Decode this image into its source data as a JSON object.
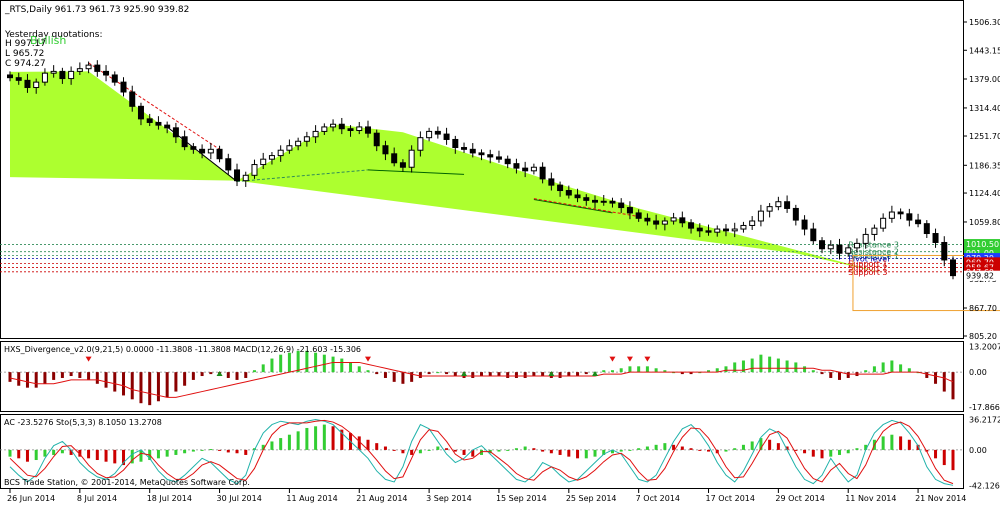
{
  "header": {
    "symbol_line": "_RTS,Daily  961.73 961.73 925.90 939.82",
    "yesterday_title": "Yesterday quotations:",
    "bullish_label": "Bullish",
    "h_line": "H 997.17",
    "l_line": "L 965.72",
    "c_line": "C 974.27"
  },
  "colors": {
    "up_candle": "#ffffff",
    "down_candle": "#000000",
    "wedge_fill": "#adff2f",
    "macd_up": "#32cd32",
    "macd_down": "#8b0000",
    "ac_up": "#32cd32",
    "ac_down": "#cc0000",
    "signal_line": "#e01010",
    "sto_main": "#20b2aa",
    "sto_signal": "#e01010",
    "grid": "#c0c0c0",
    "box": "#f0a030"
  },
  "main_panel": {
    "price_ticks": [
      "1506.30",
      "1443.15",
      "1379.00",
      "1314.40",
      "1251.70",
      "1186.35",
      "1124.40",
      "1059.80",
      "932.75",
      "867.70",
      "805.20"
    ],
    "price_axis_values": [
      1506.3,
      1443.15,
      1379.0,
      1314.4,
      1251.7,
      1186.35,
      1124.4,
      1059.8,
      932.75,
      867.7,
      805.2
    ],
    "ylim": [
      805.2,
      1542
    ],
    "level_labels": [
      {
        "text": "Resistance 3",
        "price": 1009.6,
        "color": "#2e8b57"
      },
      {
        "text": "Resistance 2",
        "price": 993.5,
        "color": "#2e8b57"
      },
      {
        "text": "Resistance 1",
        "price": 985.0,
        "color": "#2e8b57"
      },
      {
        "text": "Pivot level",
        "price": 978.0,
        "color": "#0000aa"
      },
      {
        "text": "Support 1",
        "price": 967.0,
        "color": "#cc0000"
      },
      {
        "text": "Support 2",
        "price": 958.0,
        "color": "#cc0000"
      },
      {
        "text": "Support 3",
        "price": 948.5,
        "color": "#cc0000"
      }
    ],
    "right_badges": [
      {
        "text": "1010.50",
        "price": 1010.5,
        "color": "#32cd32"
      },
      {
        "text": "991.00",
        "price": 991.0,
        "color": "#32cd32"
      },
      {
        "text": "979.20",
        "price": 979.2,
        "color": "#1e3cff"
      },
      {
        "text": "969.70",
        "price": 969.7,
        "color": "#cc0000"
      },
      {
        "text": "958.67",
        "price": 958.67,
        "color": "#cc0000"
      },
      {
        "text": "947.60",
        "price": 947.6,
        "color": "#cc0000"
      },
      {
        "text": "939.82",
        "price": 939.82,
        "color": "#ffffff"
      }
    ]
  },
  "macd_panel": {
    "label": "HXS_Divergence_v2.0(9,21,5) 0.0000 -11.3808 -11.3808   MACD(12,26,9) -21.603 -15.306",
    "ticks": [
      "13.2007",
      "0.00",
      "-17.8666"
    ],
    "tick_values": [
      13.2007,
      0.0,
      -17.8666
    ],
    "ylim": [
      -19.5,
      14.5
    ]
  },
  "ac_panel": {
    "label": "AC -23.5276  Sto(5,3,3) 8.1050 13.2708",
    "ticks": [
      "36.2172",
      "0.00",
      "-42.1263"
    ],
    "tick_values": [
      36.2172,
      0.0,
      -42.1263
    ],
    "ylim": [
      -44,
      39
    ],
    "copyright": "BCS Trade Station, © 2001-2014, MetaQuotes Software Corp."
  },
  "x_axis": {
    "labels": [
      "26 Jun 2014",
      "8 Jul 2014",
      "18 Jul 2014",
      "30 Jul 2014",
      "11 Aug 2014",
      "21 Aug 2014",
      "3 Sep 2014",
      "15 Sep 2014",
      "25 Sep 2014",
      "7 Oct 2014",
      "17 Oct 2014",
      "29 Oct 2014",
      "11 Nov 2014",
      "21 Nov 2014"
    ],
    "label_bar_index": [
      0,
      8,
      16,
      24,
      32,
      40,
      48,
      56,
      64,
      72,
      80,
      88,
      96,
      104
    ]
  },
  "chart_data": [
    {
      "type": "candlestick",
      "title": "_RTS,Daily",
      "ylim": [
        805.2,
        1542
      ],
      "grid": false,
      "x_labels": [
        "26 Jun 2014",
        "8 Jul 2014",
        "18 Jul 2014",
        "30 Jul 2014",
        "11 Aug 2014",
        "21 Aug 2014",
        "3 Sep 2014",
        "15 Sep 2014",
        "25 Sep 2014",
        "7 Oct 2014",
        "17 Oct 2014",
        "29 Oct 2014",
        "11 Nov 2014",
        "21 Nov 2014"
      ],
      "close_values": [
        1382,
        1376,
        1360,
        1372,
        1392,
        1396,
        1380,
        1396,
        1402,
        1410,
        1396,
        1388,
        1372,
        1350,
        1318,
        1290,
        1282,
        1276,
        1270,
        1250,
        1228,
        1222,
        1214,
        1222,
        1201,
        1176,
        1152,
        1164,
        1188,
        1200,
        1208,
        1220,
        1230,
        1240,
        1250,
        1262,
        1272,
        1278,
        1268,
        1264,
        1272,
        1258,
        1230,
        1212,
        1192,
        1182,
        1220,
        1248,
        1262,
        1256,
        1244,
        1226,
        1222,
        1214,
        1210,
        1205,
        1200,
        1190,
        1180,
        1174,
        1182,
        1156,
        1142,
        1130,
        1120,
        1114,
        1108,
        1104,
        1106,
        1102,
        1092,
        1080,
        1068,
        1062,
        1055,
        1062,
        1069,
        1058,
        1046,
        1040,
        1037,
        1044,
        1040,
        1044,
        1052,
        1062,
        1084,
        1094,
        1105,
        1090,
        1064,
        1044,
        1018,
        1000,
        1008,
        990,
        1002,
        1012,
        1032,
        1046,
        1068,
        1082,
        1078,
        1064,
        1056,
        1034,
        1014,
        975,
        940
      ]
    },
    {
      "type": "bar",
      "title": "MACD(12,26,9)",
      "ylim": [
        -19.5,
        14.5
      ],
      "values": [
        -5,
        -7,
        -8,
        -8,
        -6,
        -4,
        -3,
        -2,
        -3,
        -4,
        -6,
        -8,
        -10,
        -12,
        -14,
        -16,
        -17,
        -15,
        -13,
        -10,
        -7,
        -4,
        -2,
        -1,
        -2,
        -3,
        -4,
        -3,
        1,
        4,
        7,
        9,
        10,
        11,
        11,
        10,
        9,
        8,
        7,
        5,
        3,
        1,
        -1,
        -3,
        -5,
        -6,
        -5,
        -3,
        -1,
        0,
        -1,
        -2,
        -3,
        -3,
        -2,
        -2,
        -2,
        -3,
        -3,
        -3,
        -2,
        -2,
        -3,
        -3,
        -2,
        -2,
        -1,
        0,
        1,
        1,
        2,
        3,
        3,
        3,
        2,
        1,
        0,
        -1,
        -1,
        0,
        1,
        2,
        3,
        5,
        6,
        7,
        9,
        8,
        7,
        6,
        5,
        3,
        1,
        -1,
        -3,
        -4,
        -3,
        -2,
        1,
        3,
        5,
        6,
        4,
        2,
        0,
        -3,
        -6,
        -10,
        -14
      ],
      "signal": [
        -3,
        -4,
        -5,
        -6,
        -6,
        -6,
        -5,
        -4,
        -4,
        -4,
        -4,
        -5,
        -6,
        -7,
        -9,
        -10,
        -11,
        -12,
        -13,
        -13,
        -12,
        -11,
        -10,
        -9,
        -8,
        -7,
        -6,
        -5,
        -4,
        -3,
        -2,
        -1,
        0,
        1,
        2,
        3,
        4,
        5,
        5,
        5,
        5,
        4,
        3,
        2,
        1,
        0,
        -1,
        -2,
        -2,
        -2,
        -2,
        -2,
        -2,
        -2,
        -2,
        -2,
        -2,
        -2,
        -2,
        -2,
        -2,
        -2,
        -2,
        -2,
        -2,
        -2,
        -2,
        -2,
        -1,
        -1,
        -1,
        0,
        0,
        0,
        0,
        0,
        0,
        0,
        0,
        0,
        0,
        0,
        1,
        1,
        1,
        2,
        2,
        2,
        2,
        2,
        2,
        2,
        2,
        1,
        1,
        0,
        -1,
        -1,
        -1,
        -1,
        -1,
        0,
        0,
        0,
        0,
        -1,
        -2,
        -3,
        -5
      ]
    },
    {
      "type": "line",
      "title": "Sto(5,3,3)",
      "ylim": [
        -44,
        39
      ],
      "ac_values": [
        -8,
        -10,
        -14,
        -12,
        -8,
        -6,
        -4,
        -6,
        -8,
        -10,
        -12,
        -14,
        -16,
        -18,
        -16,
        -14,
        -12,
        -10,
        -8,
        -6,
        -4,
        -2,
        0,
        1,
        -1,
        -3,
        -4,
        -6,
        2,
        6,
        10,
        14,
        18,
        22,
        26,
        28,
        30,
        28,
        24,
        20,
        16,
        12,
        8,
        4,
        0,
        -4,
        -6,
        -4,
        0,
        4,
        2,
        -2,
        -6,
        -8,
        -6,
        -4,
        -2,
        0,
        2,
        4,
        2,
        -2,
        -4,
        -6,
        -8,
        -10,
        -10,
        -8,
        -6,
        -4,
        -2,
        0,
        2,
        4,
        6,
        8,
        6,
        4,
        2,
        0,
        -2,
        -4,
        -2,
        2,
        6,
        10,
        14,
        12,
        8,
        4,
        0,
        -4,
        -8,
        -10,
        -8,
        -6,
        -4,
        2,
        6,
        12,
        16,
        18,
        16,
        12,
        6,
        -2,
        -10,
        -18,
        -24
      ],
      "sto_main": [
        -20,
        -30,
        -38,
        -30,
        -10,
        5,
        10,
        0,
        -15,
        -25,
        -32,
        -35,
        -28,
        -15,
        -5,
        0,
        -10,
        -25,
        -35,
        -38,
        -30,
        -20,
        -10,
        -15,
        -25,
        -35,
        -40,
        -30,
        0,
        20,
        30,
        34,
        32,
        30,
        34,
        36,
        34,
        30,
        20,
        10,
        0,
        -10,
        -25,
        -35,
        -38,
        -20,
        10,
        30,
        25,
        10,
        -5,
        -15,
        -10,
        0,
        5,
        -5,
        -15,
        -25,
        -35,
        -38,
        -30,
        -15,
        -20,
        -30,
        -38,
        -35,
        -25,
        -15,
        -5,
        0,
        -5,
        -20,
        -35,
        -38,
        -30,
        -10,
        10,
        25,
        30,
        20,
        5,
        -15,
        -30,
        -38,
        -25,
        -5,
        15,
        25,
        20,
        0,
        -20,
        -35,
        -40,
        -30,
        -10,
        -25,
        -38,
        -30,
        0,
        20,
        30,
        35,
        32,
        20,
        5,
        -20,
        -35,
        -40,
        -42
      ],
      "sto_signal": [
        -10,
        -20,
        -30,
        -32,
        -22,
        -8,
        4,
        5,
        -5,
        -18,
        -28,
        -33,
        -32,
        -24,
        -12,
        -4,
        -6,
        -18,
        -28,
        -35,
        -35,
        -28,
        -18,
        -14,
        -18,
        -26,
        -34,
        -36,
        -22,
        0,
        18,
        28,
        32,
        32,
        32,
        34,
        35,
        33,
        28,
        20,
        10,
        0,
        -12,
        -25,
        -34,
        -32,
        -10,
        12,
        24,
        22,
        10,
        -5,
        -12,
        -10,
        -2,
        -2,
        -10,
        -18,
        -28,
        -34,
        -36,
        -26,
        -20,
        -24,
        -32,
        -36,
        -32,
        -24,
        -14,
        -6,
        -4,
        -12,
        -26,
        -36,
        -35,
        -22,
        -2,
        15,
        26,
        25,
        14,
        -2,
        -20,
        -33,
        -32,
        -16,
        2,
        18,
        22,
        14,
        -4,
        -22,
        -34,
        -38,
        -24,
        -16,
        -28,
        -34,
        -18,
        6,
        22,
        30,
        33,
        28,
        16,
        -2,
        -22,
        -36,
        -40
      ]
    }
  ]
}
